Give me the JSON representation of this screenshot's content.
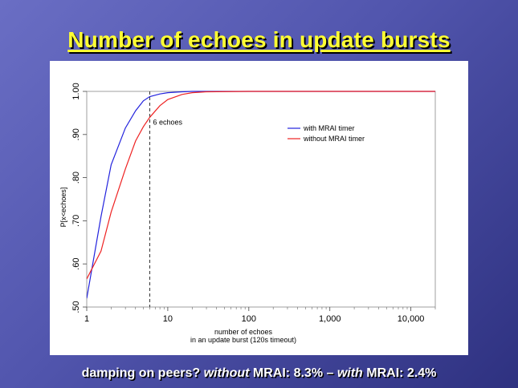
{
  "slide": {
    "title": "Number of echoes in update bursts",
    "footer_parts": [
      "damping on peers? ",
      "without",
      " MRAI: 8.3% – ",
      "with",
      " MRAI: 2.4%"
    ]
  },
  "chart_data": {
    "type": "line",
    "title": "",
    "xlabel": [
      "number of echoes",
      "in an update burst (120s timeout)"
    ],
    "ylabel": "P[x<echoes]",
    "x_scale": "log",
    "xlim": [
      1,
      20000
    ],
    "ylim": [
      0.5,
      1.0
    ],
    "xticks": [
      1,
      10,
      100,
      1000,
      10000
    ],
    "xtick_labels": [
      "1",
      "10",
      "100",
      "1,000",
      "10,000"
    ],
    "yticks": [
      0.5,
      0.6,
      0.7,
      0.8,
      0.9,
      1.0
    ],
    "ytick_labels": [
      ".50",
      ".60",
      ".70",
      ".80",
      ".90",
      "1.00"
    ],
    "grid": false,
    "legend_position": "top-right",
    "series": [
      {
        "name": "with MRAI timer",
        "color": "#2222dd",
        "points": [
          [
            1,
            0.52
          ],
          [
            1.5,
            0.71
          ],
          [
            2,
            0.83
          ],
          [
            3,
            0.915
          ],
          [
            4,
            0.955
          ],
          [
            5,
            0.978
          ],
          [
            6,
            0.988
          ],
          [
            8,
            0.994
          ],
          [
            10,
            0.997
          ],
          [
            15,
            0.999
          ],
          [
            20,
            1.0
          ],
          [
            100,
            1.0
          ],
          [
            1000,
            1.0
          ],
          [
            10000,
            1.0
          ],
          [
            20000,
            1.0
          ]
        ]
      },
      {
        "name": "without MRAI timer",
        "color": "#ee2222",
        "points": [
          [
            1,
            0.565
          ],
          [
            1.5,
            0.63
          ],
          [
            2,
            0.72
          ],
          [
            3,
            0.82
          ],
          [
            4,
            0.885
          ],
          [
            5,
            0.918
          ],
          [
            6,
            0.94
          ],
          [
            8,
            0.967
          ],
          [
            10,
            0.981
          ],
          [
            15,
            0.993
          ],
          [
            20,
            0.997
          ],
          [
            30,
            0.999
          ],
          [
            100,
            1.0
          ],
          [
            1000,
            1.0
          ],
          [
            10000,
            1.0
          ],
          [
            20000,
            1.0
          ]
        ]
      }
    ],
    "annotations": [
      {
        "type": "vline",
        "x": 6,
        "label": "6 echoes",
        "color": "#333333"
      }
    ]
  }
}
